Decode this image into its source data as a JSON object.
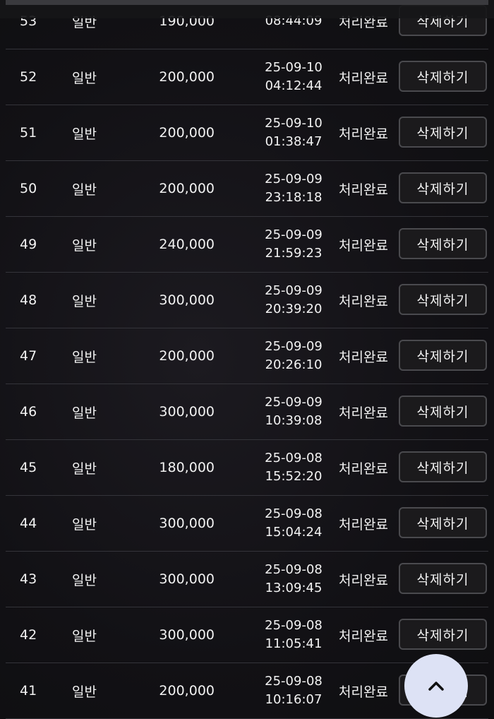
{
  "rows": [
    {
      "no": "53",
      "type": "일반",
      "amount": "190,000",
      "date": "",
      "time": "08:44:09",
      "status": "처리완료",
      "action": "삭제하기"
    },
    {
      "no": "52",
      "type": "일반",
      "amount": "200,000",
      "date": "25-09-10",
      "time": "04:12:44",
      "status": "처리완료",
      "action": "삭제하기"
    },
    {
      "no": "51",
      "type": "일반",
      "amount": "200,000",
      "date": "25-09-10",
      "time": "01:38:47",
      "status": "처리완료",
      "action": "삭제하기"
    },
    {
      "no": "50",
      "type": "일반",
      "amount": "200,000",
      "date": "25-09-09",
      "time": "23:18:18",
      "status": "처리완료",
      "action": "삭제하기"
    },
    {
      "no": "49",
      "type": "일반",
      "amount": "240,000",
      "date": "25-09-09",
      "time": "21:59:23",
      "status": "처리완료",
      "action": "삭제하기"
    },
    {
      "no": "48",
      "type": "일반",
      "amount": "300,000",
      "date": "25-09-09",
      "time": "20:39:20",
      "status": "처리완료",
      "action": "삭제하기"
    },
    {
      "no": "47",
      "type": "일반",
      "amount": "200,000",
      "date": "25-09-09",
      "time": "20:26:10",
      "status": "처리완료",
      "action": "삭제하기"
    },
    {
      "no": "46",
      "type": "일반",
      "amount": "300,000",
      "date": "25-09-09",
      "time": "10:39:08",
      "status": "처리완료",
      "action": "삭제하기"
    },
    {
      "no": "45",
      "type": "일반",
      "amount": "180,000",
      "date": "25-09-08",
      "time": "15:52:20",
      "status": "처리완료",
      "action": "삭제하기"
    },
    {
      "no": "44",
      "type": "일반",
      "amount": "300,000",
      "date": "25-09-08",
      "time": "15:04:24",
      "status": "처리완료",
      "action": "삭제하기"
    },
    {
      "no": "43",
      "type": "일반",
      "amount": "300,000",
      "date": "25-09-08",
      "time": "13:09:45",
      "status": "처리완료",
      "action": "삭제하기"
    },
    {
      "no": "42",
      "type": "일반",
      "amount": "300,000",
      "date": "25-09-08",
      "time": "11:05:41",
      "status": "처리완료",
      "action": "삭제하기"
    },
    {
      "no": "41",
      "type": "일반",
      "amount": "200,000",
      "date": "25-09-08",
      "time": "10:16:07",
      "status": "처리완료",
      "action": "삭제하기"
    }
  ],
  "scroll_top": {
    "icon": "chevron-up-icon",
    "color": "#dde2f5"
  }
}
